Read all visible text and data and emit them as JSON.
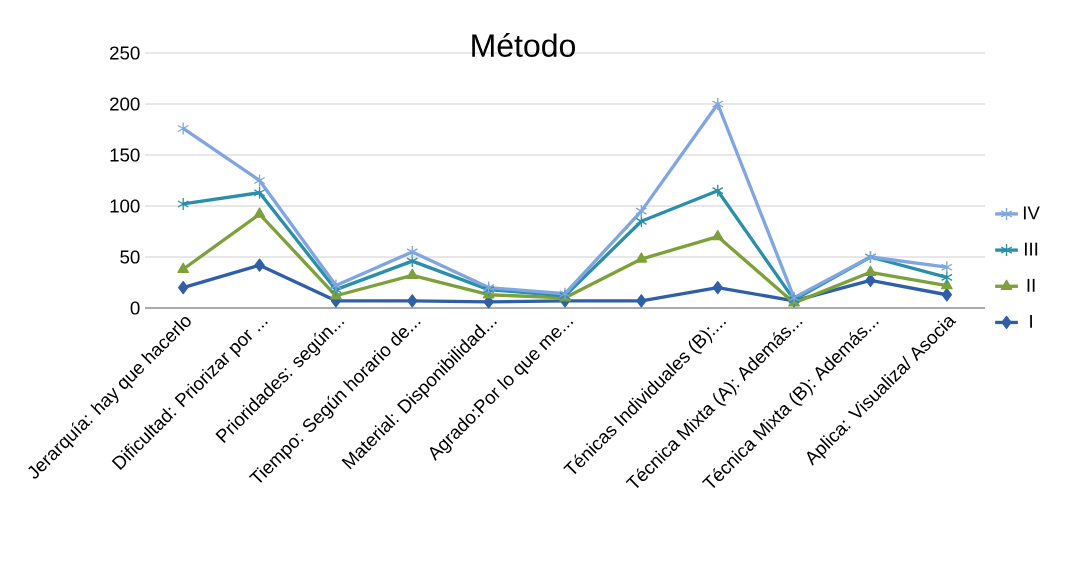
{
  "chart_data": {
    "type": "line",
    "title": "Método",
    "categories": [
      "Jerarquía: hay que hacerlo",
      "Dificultad: Priorizar por ...",
      "Prioridades: según...",
      "Tiempo: Según horario de...",
      "Material: Disponibilidad...",
      "Agrado:Por lo que me...",
      null,
      "Ténicas Individuales (B):...",
      "Técnica Mixta (A): Además...",
      "Técnica Mixta (B): Además...",
      "Aplica: Visualiza/ Asocia"
    ],
    "series": [
      {
        "name": "I",
        "color": "#2f5fa8",
        "marker": "diamond",
        "values": [
          20,
          42,
          7,
          7,
          6,
          7,
          7,
          20,
          7,
          27,
          13
        ]
      },
      {
        "name": "II",
        "color": "#7da13a",
        "marker": "triangle",
        "values": [
          38,
          92,
          12,
          32,
          13,
          10,
          48,
          70,
          5,
          35,
          22
        ]
      },
      {
        "name": "III",
        "color": "#2a8fa8",
        "marker": "cross",
        "values": [
          102,
          113,
          18,
          46,
          18,
          12,
          85,
          115,
          8,
          50,
          30
        ]
      },
      {
        "name": "IV",
        "color": "#7fa6e0",
        "marker": "cross",
        "values": [
          176,
          125,
          22,
          55,
          20,
          14,
          95,
          200,
          10,
          50,
          40
        ]
      }
    ],
    "ylim": [
      0,
      250
    ],
    "yticks": [
      0,
      50,
      100,
      150,
      200,
      250
    ],
    "grid": "y",
    "legend": "right",
    "line_style": "solid"
  }
}
